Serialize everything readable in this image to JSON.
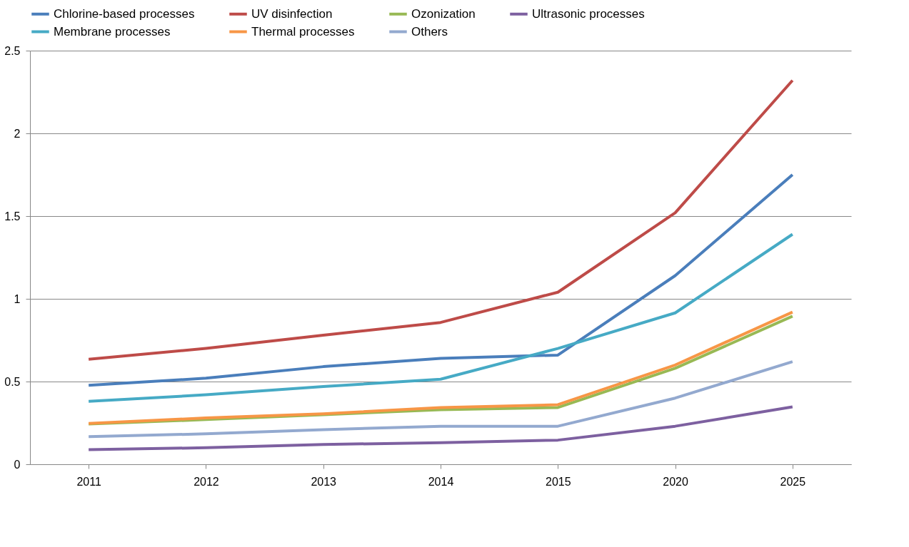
{
  "chart_data": {
    "type": "line",
    "categories": [
      "2011",
      "2012",
      "2013",
      "2014",
      "2015",
      "2020",
      "2025"
    ],
    "ylim": [
      0,
      2.5
    ],
    "yticks": [
      0,
      0.5,
      1,
      1.5,
      2,
      2.5
    ],
    "grid": "y",
    "legend": "top",
    "marker": "none",
    "line_style": "solid",
    "series": [
      {
        "name": "Chlorine-based processes",
        "color": "#4a7ebb",
        "values": [
          0.477,
          0.52,
          0.59,
          0.64,
          0.66,
          1.14,
          1.75
        ]
      },
      {
        "name": "UV disinfection",
        "color": "#be4b48",
        "values": [
          0.635,
          0.7,
          0.78,
          0.857,
          1.04,
          1.52,
          2.32
        ]
      },
      {
        "name": "Ozonization",
        "color": "#98b954",
        "values": [
          0.243,
          0.27,
          0.3,
          0.33,
          0.343,
          0.58,
          0.895
        ]
      },
      {
        "name": "Ultrasonic processes",
        "color": "#7d60a0",
        "values": [
          0.088,
          0.1,
          0.12,
          0.13,
          0.146,
          0.23,
          0.347
        ]
      },
      {
        "name": "Membrane processes",
        "color": "#46aac5",
        "values": [
          0.38,
          0.42,
          0.47,
          0.514,
          0.7,
          0.915,
          1.39
        ]
      },
      {
        "name": "Thermal processes",
        "color": "#f79646",
        "values": [
          0.247,
          0.28,
          0.305,
          0.343,
          0.36,
          0.6,
          0.92
        ]
      },
      {
        "name": "Others",
        "color": "#93a9cf",
        "values": [
          0.167,
          0.184,
          0.209,
          0.23,
          0.23,
          0.4,
          0.62
        ]
      }
    ]
  }
}
